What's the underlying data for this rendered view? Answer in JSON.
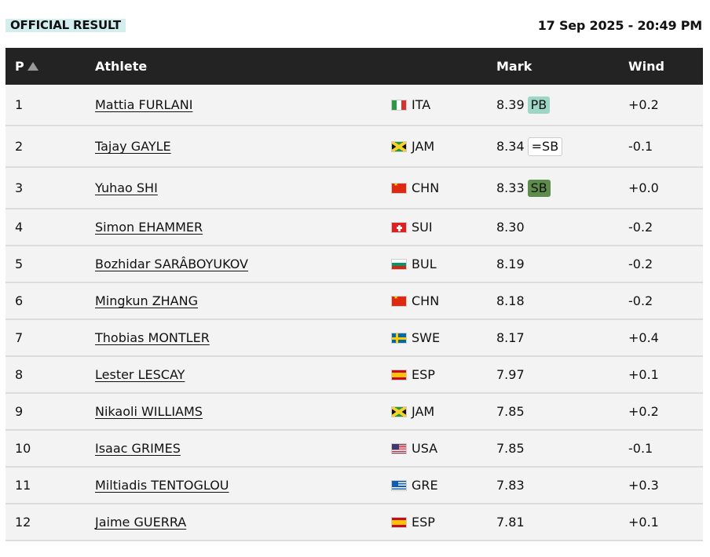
{
  "header": {
    "status_label": "OFFICIAL RESULT",
    "datetime": "17 Sep 2025 - 20:49 PM"
  },
  "columns": {
    "position": "P",
    "athlete": "Athlete",
    "mark": "Mark",
    "wind": "Wind"
  },
  "rows": [
    {
      "pos": "1",
      "name": "Mattia FURLANI",
      "flag": "ita",
      "country": "ITA",
      "mark": "8.39",
      "badge": "PB",
      "badge_type": "pb",
      "wind": "+0.2"
    },
    {
      "pos": "2",
      "name": "Tajay GAYLE",
      "flag": "jam",
      "country": "JAM",
      "mark": "8.34",
      "badge": "=SB",
      "badge_type": "eqsb",
      "wind": "-0.1"
    },
    {
      "pos": "3",
      "name": "Yuhao SHI",
      "flag": "chn",
      "country": "CHN",
      "mark": "8.33",
      "badge": "SB",
      "badge_type": "sb",
      "wind": "+0.0"
    },
    {
      "pos": "4",
      "name": "Simon EHAMMER",
      "flag": "sui",
      "country": "SUI",
      "mark": "8.30",
      "badge": "",
      "badge_type": "",
      "wind": "-0.2"
    },
    {
      "pos": "5",
      "name": "Bozhidar SARÂBOYUKOV",
      "flag": "bul",
      "country": "BUL",
      "mark": "8.19",
      "badge": "",
      "badge_type": "",
      "wind": "-0.2"
    },
    {
      "pos": "6",
      "name": "Mingkun ZHANG",
      "flag": "chn",
      "country": "CHN",
      "mark": "8.18",
      "badge": "",
      "badge_type": "",
      "wind": "-0.2"
    },
    {
      "pos": "7",
      "name": "Thobias MONTLER",
      "flag": "swe",
      "country": "SWE",
      "mark": "8.17",
      "badge": "",
      "badge_type": "",
      "wind": "+0.4"
    },
    {
      "pos": "8",
      "name": "Lester LESCAY",
      "flag": "esp",
      "country": "ESP",
      "mark": "7.97",
      "badge": "",
      "badge_type": "",
      "wind": "+0.1"
    },
    {
      "pos": "9",
      "name": "Nikaoli WILLIAMS",
      "flag": "jam",
      "country": "JAM",
      "mark": "7.85",
      "badge": "",
      "badge_type": "",
      "wind": "+0.2"
    },
    {
      "pos": "10",
      "name": "Isaac GRIMES",
      "flag": "usa",
      "country": "USA",
      "mark": "7.85",
      "badge": "",
      "badge_type": "",
      "wind": "-0.1"
    },
    {
      "pos": "11",
      "name": "Miltiadis TENTOGLOU",
      "flag": "gre",
      "country": "GRE",
      "mark": "7.83",
      "badge": "",
      "badge_type": "",
      "wind": "+0.3"
    },
    {
      "pos": "12",
      "name": "Jaime GUERRA",
      "flag": "esp",
      "country": "ESP",
      "mark": "7.81",
      "badge": "",
      "badge_type": "",
      "wind": "+0.1"
    }
  ]
}
